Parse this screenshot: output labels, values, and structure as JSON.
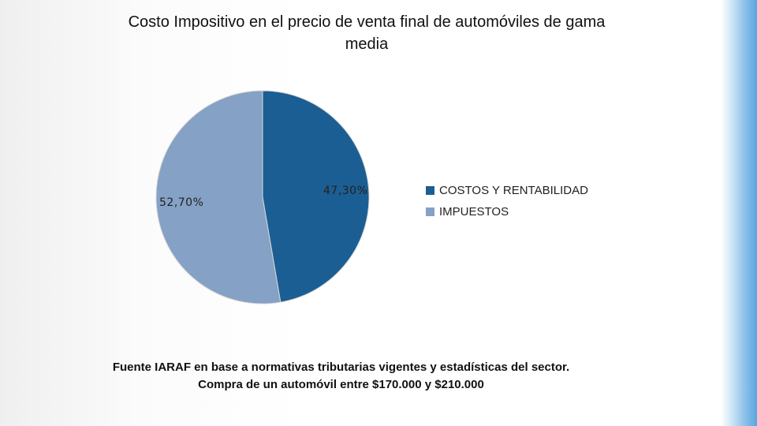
{
  "slide": {
    "source_note": "Fuente IARAF en base a normativas tributarias vigentes y estadísticas del sector. Compra de un automóvil entre $170.000 y $210.000"
  },
  "colors": {
    "costos": "#1b5e93",
    "impuestos": "#85a1c5",
    "pie_border": "#d7d7d7"
  },
  "chart_data": {
    "type": "pie",
    "title": "Costo Impositivo en el precio de venta final de automóviles de gama media",
    "legend_position": "right",
    "categories": [
      "COSTOS Y RENTABILIDAD",
      "IMPUESTOS"
    ],
    "values": [
      47.3,
      52.7
    ],
    "value_labels": [
      "47,30%",
      "52,70%"
    ]
  }
}
